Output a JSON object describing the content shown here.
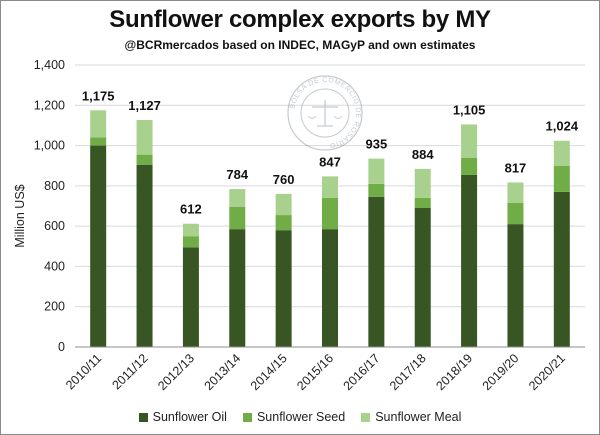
{
  "colors": {
    "sunflower_oil": "#375623",
    "sunflower_seed": "#70ad47",
    "sunflower_meal": "#a9d18e",
    "gridline": "#d9d9d9",
    "axis": "#8c8c8c"
  },
  "watermark": {
    "icon": "bolsa-de-comercio-de-rosario-seal-icon",
    "text": "BOLSA DE COMERCIO DE ROSARIO"
  },
  "chart_data": {
    "type": "bar",
    "stacked": true,
    "title": "Sunflower complex exports by MY",
    "subtitle": "@BCRmercados based on INDEC, MAGyP and own estimates",
    "xlabel": "",
    "ylabel": "Million US$",
    "ylim": [
      0,
      1400
    ],
    "yticks": [
      0,
      200,
      400,
      600,
      800,
      1000,
      1200,
      1400
    ],
    "ytick_labels": [
      "0",
      "200",
      "400",
      "600",
      "800",
      "1,000",
      "1,200",
      "1,400"
    ],
    "grid": true,
    "legend_position": "bottom",
    "categories": [
      "2010/11",
      "2011/12",
      "2012/13",
      "2013/14",
      "2014/15",
      "2015/16",
      "2016/17",
      "2017/18",
      "2018/19",
      "2019/20",
      "2020/21"
    ],
    "series": [
      {
        "name": "Sunflower Oil",
        "color_key": "sunflower_oil",
        "values": [
          1000,
          905,
          495,
          585,
          580,
          585,
          745,
          690,
          855,
          610,
          770
        ]
      },
      {
        "name": "Sunflower Seed",
        "color_key": "sunflower_seed",
        "values": [
          40,
          50,
          55,
          110,
          75,
          155,
          65,
          50,
          85,
          105,
          130
        ]
      },
      {
        "name": "Sunflower Meal",
        "color_key": "sunflower_meal",
        "values": [
          135,
          172,
          62,
          89,
          105,
          107,
          125,
          144,
          165,
          102,
          124
        ]
      }
    ],
    "totals": [
      1175,
      1127,
      612,
      784,
      760,
      847,
      935,
      884,
      1105,
      817,
      1024
    ],
    "total_labels": [
      "1,175",
      "1,127",
      "612",
      "784",
      "760",
      "847",
      "935",
      "884",
      "1,105",
      "817",
      "1,024"
    ]
  }
}
